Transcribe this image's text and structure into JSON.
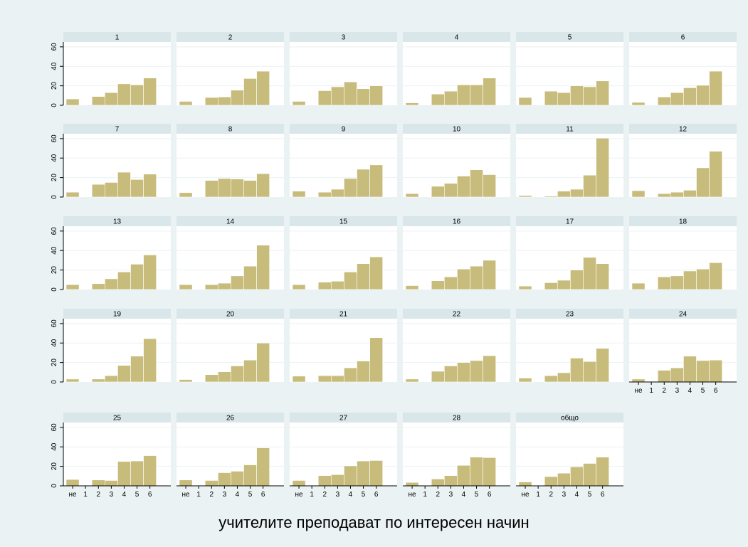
{
  "chart_data": {
    "type": "bar",
    "xlabel": "учителите преподават по интересен начин",
    "ylabel": "",
    "categories": [
      "не",
      "1",
      "2",
      "3",
      "4",
      "5",
      "6"
    ],
    "ylim": [
      0,
      65
    ],
    "yticks": [
      0,
      20,
      40,
      60
    ],
    "bar_color": "#c8bc7c",
    "panel_header_color": "#d9e6ea",
    "panels": [
      {
        "title": "1",
        "values": [
          6.5,
          0,
          9,
          13,
          22,
          21,
          28
        ]
      },
      {
        "title": "2",
        "values": [
          4,
          0,
          8,
          8.5,
          15.5,
          27.5,
          35
        ]
      },
      {
        "title": "3",
        "values": [
          4,
          0,
          15,
          19,
          24,
          17,
          20
        ]
      },
      {
        "title": "4",
        "values": [
          2.5,
          0,
          11.5,
          14.5,
          21,
          21,
          28
        ]
      },
      {
        "title": "5",
        "values": [
          8,
          0,
          14.5,
          13,
          20,
          19,
          25
        ]
      },
      {
        "title": "6",
        "values": [
          3,
          0,
          8.5,
          13,
          18,
          20.5,
          35
        ]
      },
      {
        "title": "7",
        "values": [
          5,
          0,
          13,
          15,
          25.5,
          18,
          23.5
        ]
      },
      {
        "title": "8",
        "values": [
          4.5,
          0,
          17,
          19,
          18.5,
          17,
          24
        ]
      },
      {
        "title": "9",
        "values": [
          6,
          0,
          5,
          8,
          19,
          28.5,
          33
        ]
      },
      {
        "title": "10",
        "values": [
          3.5,
          0,
          11,
          14,
          21.5,
          28,
          23
        ]
      },
      {
        "title": "11",
        "values": [
          1.5,
          0,
          1,
          6,
          8,
          22.5,
          60.5
        ]
      },
      {
        "title": "12",
        "values": [
          6.5,
          0,
          3.5,
          5,
          7,
          30,
          47
        ]
      },
      {
        "title": "13",
        "values": [
          5,
          0,
          6,
          11,
          18,
          26,
          35.5
        ]
      },
      {
        "title": "14",
        "values": [
          5,
          0,
          5,
          6.5,
          14,
          24,
          45.5
        ]
      },
      {
        "title": "15",
        "values": [
          5,
          0,
          7.5,
          8.5,
          18,
          26.5,
          33.5
        ]
      },
      {
        "title": "16",
        "values": [
          4,
          0,
          9,
          13,
          21,
          24,
          30
        ]
      },
      {
        "title": "17",
        "values": [
          3.5,
          0,
          7,
          9.5,
          20,
          33,
          26.5
        ]
      },
      {
        "title": "18",
        "values": [
          6.5,
          0,
          13,
          14,
          19,
          21,
          27.5
        ]
      },
      {
        "title": "19",
        "values": [
          3,
          0,
          3,
          6.5,
          17,
          26.5,
          44.5
        ]
      },
      {
        "title": "20",
        "values": [
          2.5,
          0,
          7.5,
          10.5,
          16.5,
          22.5,
          40
        ]
      },
      {
        "title": "21",
        "values": [
          6,
          0,
          6.5,
          6.5,
          14.5,
          21.5,
          45.5
        ]
      },
      {
        "title": "22",
        "values": [
          3,
          0,
          11,
          16.5,
          20,
          22,
          27
        ]
      },
      {
        "title": "23",
        "values": [
          4,
          0,
          6.5,
          9.5,
          24.5,
          21,
          34.5
        ]
      },
      {
        "title": "24",
        "values": [
          3,
          0,
          12,
          14.5,
          26.5,
          22,
          22.5
        ]
      },
      {
        "title": "25",
        "values": [
          6.5,
          0,
          6,
          5.5,
          25,
          25.5,
          31
        ]
      },
      {
        "title": "26",
        "values": [
          6,
          0,
          5.5,
          13.5,
          15,
          21.5,
          39
        ]
      },
      {
        "title": "27",
        "values": [
          5.5,
          0,
          10.5,
          11.5,
          20.5,
          25.5,
          26
        ]
      },
      {
        "title": "28",
        "values": [
          3.5,
          0,
          7,
          10.5,
          21,
          29.5,
          29
        ]
      },
      {
        "title": "общо",
        "values": [
          4,
          0,
          9.5,
          13,
          19.5,
          23,
          29.5
        ]
      }
    ]
  }
}
